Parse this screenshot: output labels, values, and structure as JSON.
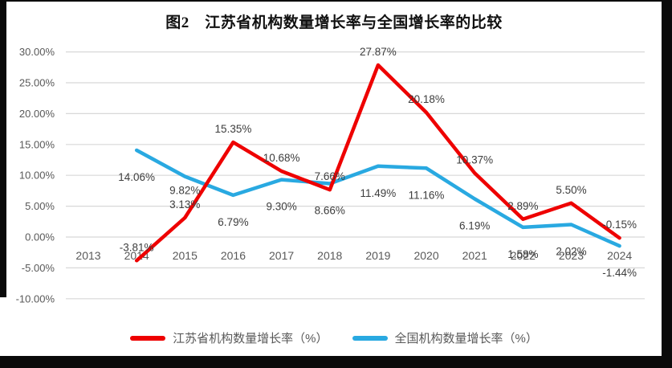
{
  "chart_data": {
    "type": "line",
    "title": "图2　江苏省机构数量增长率与全国增长率的比较",
    "categories": [
      "2013",
      "2014",
      "2015",
      "2016",
      "2017",
      "2018",
      "2019",
      "2020",
      "2021",
      "2022",
      "2023",
      "2024"
    ],
    "series": [
      {
        "name": "江苏省机构数量增长率（%）",
        "color": "#ee0000",
        "label_position": "above",
        "values": [
          null,
          -3.81,
          3.13,
          15.35,
          10.68,
          7.66,
          27.87,
          20.18,
          10.37,
          2.89,
          5.5,
          -0.15
        ]
      },
      {
        "name": "全国机构数量增长率（%）",
        "color": "#29a9e1",
        "label_position": "below",
        "values": [
          null,
          14.06,
          9.82,
          6.79,
          9.3,
          8.66,
          11.49,
          11.16,
          6.19,
          1.58,
          2.02,
          -1.44
        ]
      }
    ],
    "y_axis": {
      "min": -10,
      "max": 30,
      "step": 5,
      "tick_format": "0.00%",
      "tick_labels": [
        "30.00%",
        "25.00%",
        "20.00%",
        "15.00%",
        "10.00%",
        "5.00%",
        "0.00%",
        "-5.00%",
        "-10.00%"
      ]
    },
    "x_axis": {
      "labels": [
        "2013",
        "2014",
        "2015",
        "2016",
        "2017",
        "2018",
        "2019",
        "2020",
        "2021",
        "2022",
        "2023",
        "2024"
      ]
    },
    "grid": true,
    "legend_position": "bottom",
    "layout_hints": {
      "label_dy_above": -12,
      "label_dy_below": 38,
      "label_dy_overrides": [
        {
          "series": 1,
          "index": 2,
          "dy": 22
        }
      ]
    },
    "colors": {
      "grid": "#d8d8d8",
      "axis_text": "#595959",
      "data_label_text": "#3d3d3d",
      "background": "#ffffff",
      "frame": "#0a0a0a"
    }
  }
}
